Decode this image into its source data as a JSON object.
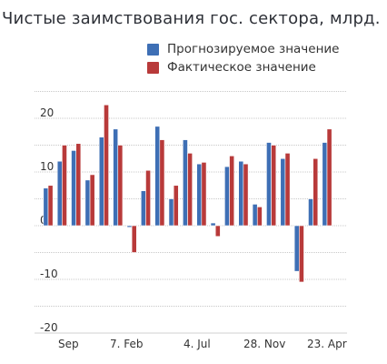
{
  "chart_data": {
    "type": "bar",
    "title": "Чистые заимствования гос. сектора, млрд.",
    "ylim": [
      -20,
      25
    ],
    "yticks": [
      -20,
      -10,
      0,
      10,
      20
    ],
    "ytick_labels": [
      "-20",
      "-10",
      "0",
      "10",
      "20"
    ],
    "grid": true,
    "legend_position": "top-right",
    "x_tick_labels": [
      "Sep",
      "7. Feb",
      "4. Jul",
      "28. Nov",
      "23. Apr"
    ],
    "series": [
      {
        "name": "Прогнозируемое значение",
        "color": "#3e6fb5",
        "values": [
          7.0,
          12.0,
          14.0,
          8.5,
          16.5,
          18.0,
          -0.3,
          6.5,
          18.5,
          5.0,
          16.0,
          11.5,
          0.5,
          11.0,
          12.0,
          4.0,
          15.5,
          12.5,
          -8.5,
          5.0,
          15.5
        ]
      },
      {
        "name": "Фактическое значение",
        "color": "#b83a3a",
        "values": [
          7.5,
          15.0,
          15.3,
          9.5,
          22.5,
          15.0,
          -5.0,
          10.3,
          16.0,
          7.5,
          13.5,
          11.8,
          -2.0,
          13.0,
          11.5,
          3.5,
          15.0,
          13.5,
          -10.5,
          12.5,
          18.0
        ]
      }
    ]
  }
}
